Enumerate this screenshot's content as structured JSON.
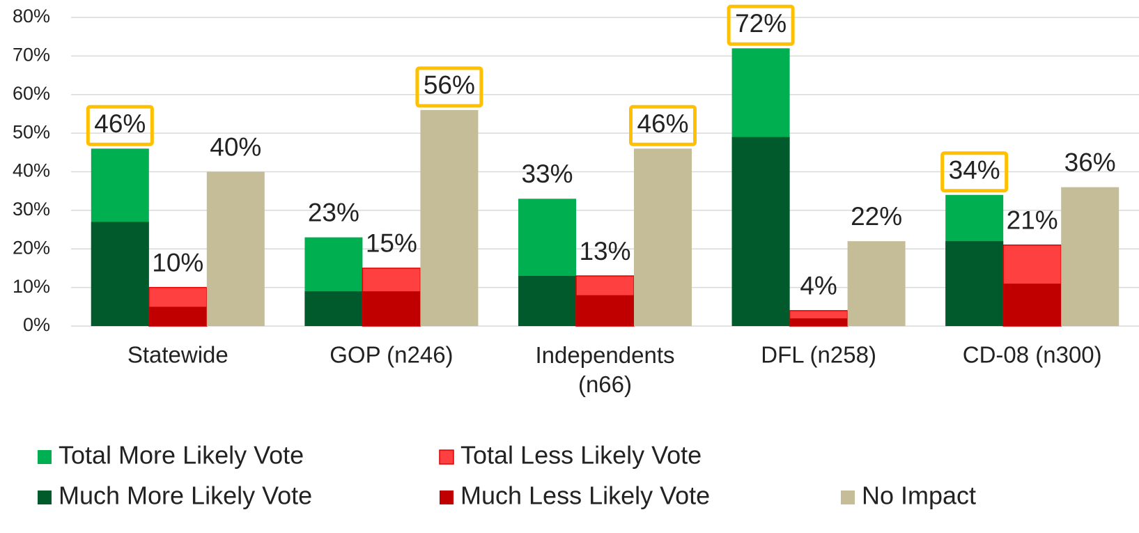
{
  "chart_data": {
    "type": "bar",
    "categories": [
      "Statewide",
      "GOP (n246)",
      "Independents (n66)",
      "DFL (n258)",
      "CD-08 (n300)"
    ],
    "series": [
      {
        "name": "Total More Likely Vote",
        "color": "#00b050",
        "values": [
          46,
          23,
          33,
          72,
          34
        ],
        "value_labels": [
          "46%",
          "23%",
          "33%",
          "72%",
          "34%"
        ],
        "highlighted": [
          true,
          false,
          false,
          true,
          true
        ]
      },
      {
        "name": "Much More Likely Vote",
        "color": "#005a2b",
        "values": [
          27,
          9,
          13,
          49,
          22
        ]
      },
      {
        "name": "Total Less Likely Vote",
        "color": "#ff4040",
        "values": [
          10,
          15,
          13,
          4,
          21
        ],
        "value_labels": [
          "10%",
          "15%",
          "13%",
          "4%",
          "21%"
        ],
        "highlighted": [
          false,
          false,
          false,
          false,
          false
        ]
      },
      {
        "name": "Much Less Likely Vote",
        "color": "#c00000",
        "values": [
          5,
          9,
          8,
          2,
          11
        ]
      },
      {
        "name": "No Impact",
        "color": "#c4bd97",
        "values": [
          40,
          56,
          46,
          22,
          36
        ],
        "value_labels": [
          "40%",
          "56%",
          "46%",
          "22%",
          "36%"
        ],
        "highlighted": [
          false,
          true,
          true,
          false,
          false
        ]
      }
    ],
    "ylim": [
      0,
      80
    ],
    "yticks": [
      {
        "value": 0,
        "label": "0%"
      },
      {
        "value": 10,
        "label": "10%"
      },
      {
        "value": 20,
        "label": "20%"
      },
      {
        "value": 30,
        "label": "30%"
      },
      {
        "value": 40,
        "label": "40%"
      },
      {
        "value": 50,
        "label": "50%"
      },
      {
        "value": 60,
        "label": "60%"
      },
      {
        "value": 70,
        "label": "70%"
      },
      {
        "value": 80,
        "label": "80%"
      }
    ],
    "grid": true,
    "highlight_color": "#ffc000"
  }
}
